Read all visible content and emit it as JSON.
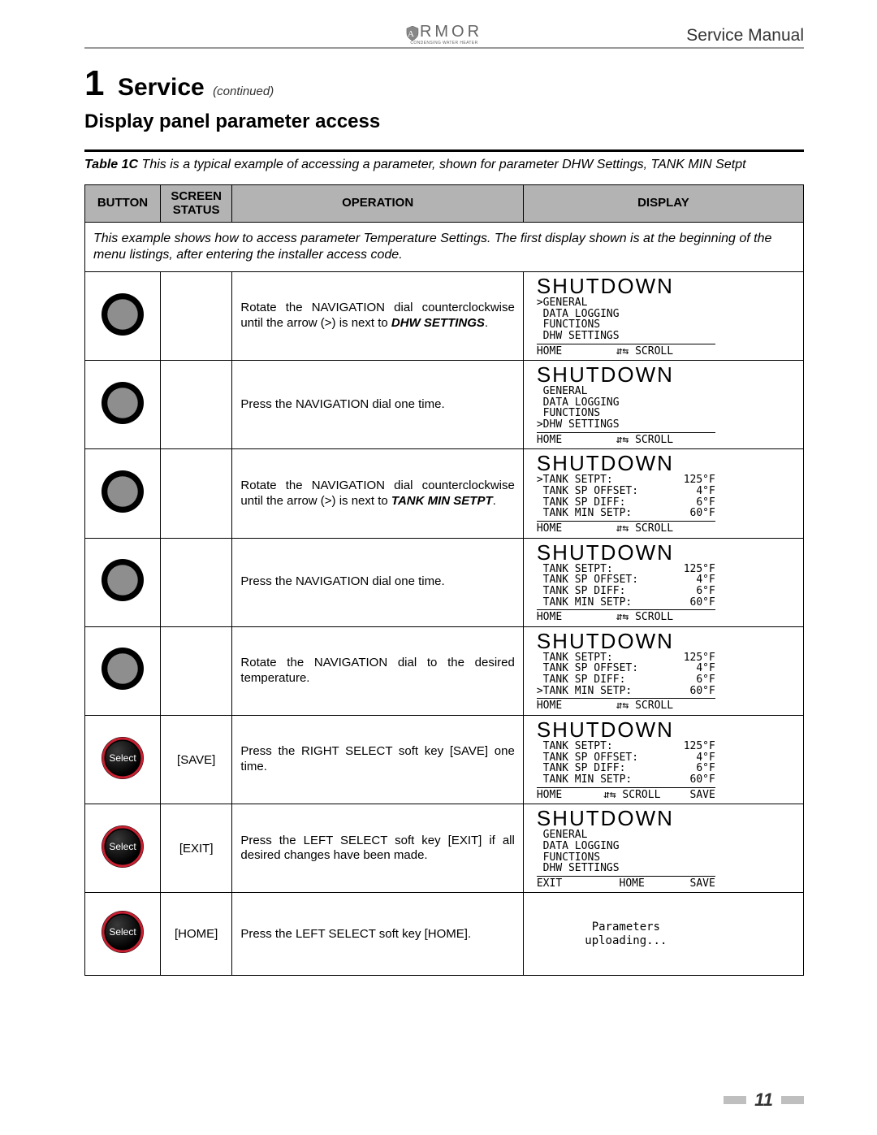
{
  "header": {
    "brand_main": "RMOR",
    "brand_sub": "CONDENSING WATER HEATER",
    "service_manual": "Service Manual"
  },
  "section": {
    "number": "1",
    "title": "Service",
    "continued": "(continued)",
    "subtitle": "Display panel parameter access"
  },
  "caption": {
    "label": "Table 1C",
    "text": "This is a typical example of accessing a parameter, shown for parameter DHW Settings, TANK MIN Setpt"
  },
  "columns": {
    "button": "Button",
    "status": "Screen Status",
    "operation": "Operation",
    "display": "Display"
  },
  "intro": "This example shows how to access parameter Temperature Settings.  The first display shown is at the beginning of the menu listings, after entering the installer access code.",
  "rows": [
    {
      "button_type": "dial",
      "status": "",
      "operation_html": "Rotate the NAVIGATION dial counterclockwise until the arrow (>) is next to <b><i>DHW SETTINGS</i></b>.",
      "display": {
        "title": "SHUTDOWN",
        "menu": [
          ">GENERAL",
          " DATA LOGGING",
          " FUNCTIONS",
          " DHW SETTINGS"
        ],
        "footer": {
          "left": "HOME",
          "mid": "⇵⇆ SCROLL",
          "right": ""
        }
      }
    },
    {
      "button_type": "dial",
      "status": "",
      "operation_html": "Press the NAVIGATION dial one time.",
      "display": {
        "title": "SHUTDOWN",
        "menu": [
          " GENERAL",
          " DATA LOGGING",
          " FUNCTIONS",
          ">DHW SETTINGS"
        ],
        "footer": {
          "left": "HOME",
          "mid": "⇵⇆ SCROLL",
          "right": ""
        }
      }
    },
    {
      "button_type": "dial",
      "status": "",
      "operation_html": "Rotate the NAVIGATION dial counterclockwise until the arrow (>) is next to <b><i>TANK MIN SETPT</i></b>.",
      "display": {
        "title": "SHUTDOWN",
        "params": [
          {
            "k": ">TANK SETPT:",
            "v": "125°F"
          },
          {
            "k": " TANK SP OFFSET:",
            "v": "4°F"
          },
          {
            "k": " TANK SP DIFF:",
            "v": "6°F"
          },
          {
            "k": " TANK MIN SETP:",
            "v": "60°F"
          }
        ],
        "footer": {
          "left": "HOME",
          "mid": "⇵⇆ SCROLL",
          "right": ""
        }
      }
    },
    {
      "button_type": "dial",
      "status": "",
      "operation_html": "Press the NAVIGATION dial one time.",
      "display": {
        "title": "SHUTDOWN",
        "params": [
          {
            "k": " TANK SETPT:",
            "v": "125°F"
          },
          {
            "k": " TANK SP OFFSET:",
            "v": "4°F"
          },
          {
            "k": " TANK SP DIFF:",
            "v": "6°F"
          },
          {
            "k": " TANK MIN SETP:",
            "v": "60°F"
          }
        ],
        "footer": {
          "left": "HOME",
          "mid": "⇵⇆ SCROLL",
          "right": ""
        }
      }
    },
    {
      "button_type": "dial",
      "status": "",
      "operation_html": "Rotate the NAVIGATION dial to the desired temperature.",
      "display": {
        "title": "SHUTDOWN",
        "params": [
          {
            "k": " TANK SETPT:",
            "v": "125°F"
          },
          {
            "k": " TANK SP OFFSET:",
            "v": "4°F"
          },
          {
            "k": " TANK SP DIFF:",
            "v": "6°F"
          },
          {
            "k": ">TANK MIN SETP:",
            "v": "60°F"
          }
        ],
        "footer": {
          "left": "HOME",
          "mid": "⇵⇆ SCROLL",
          "right": ""
        }
      }
    },
    {
      "button_type": "select",
      "status": "[SAVE]",
      "operation_html": "Press the RIGHT SELECT soft key [SAVE] one time.",
      "display": {
        "title": "SHUTDOWN",
        "params": [
          {
            "k": " TANK SETPT:",
            "v": "125°F"
          },
          {
            "k": " TANK SP OFFSET:",
            "v": "4°F"
          },
          {
            "k": " TANK SP DIFF:",
            "v": "6°F"
          },
          {
            "k": " TANK MIN SETP:",
            "v": "60°F"
          }
        ],
        "footer": {
          "left": "HOME",
          "mid": "⇵⇆ SCROLL",
          "right": "SAVE"
        }
      }
    },
    {
      "button_type": "select",
      "status": "[EXIT]",
      "operation_html": "Press the LEFT SELECT soft key [EXIT] if all desired changes have been made.",
      "display": {
        "title": "SHUTDOWN",
        "menu": [
          " GENERAL",
          " DATA LOGGING",
          " FUNCTIONS",
          " DHW SETTINGS"
        ],
        "footer": {
          "left": "EXIT",
          "mid": "HOME",
          "right": "SAVE"
        }
      }
    },
    {
      "button_type": "select",
      "status": "[HOME]",
      "operation_html": "Press the LEFT SELECT soft key [HOME].",
      "display": {
        "center": "Parameters\nuploading..."
      }
    }
  ],
  "page_number": "11",
  "colors": {
    "header_bg": "#b3b3b3",
    "dial_fill": "#8e8e8e",
    "select_ring": "#c82031",
    "select_fill": "#1a1a1a",
    "footer_bar": "#bfbfbf"
  }
}
